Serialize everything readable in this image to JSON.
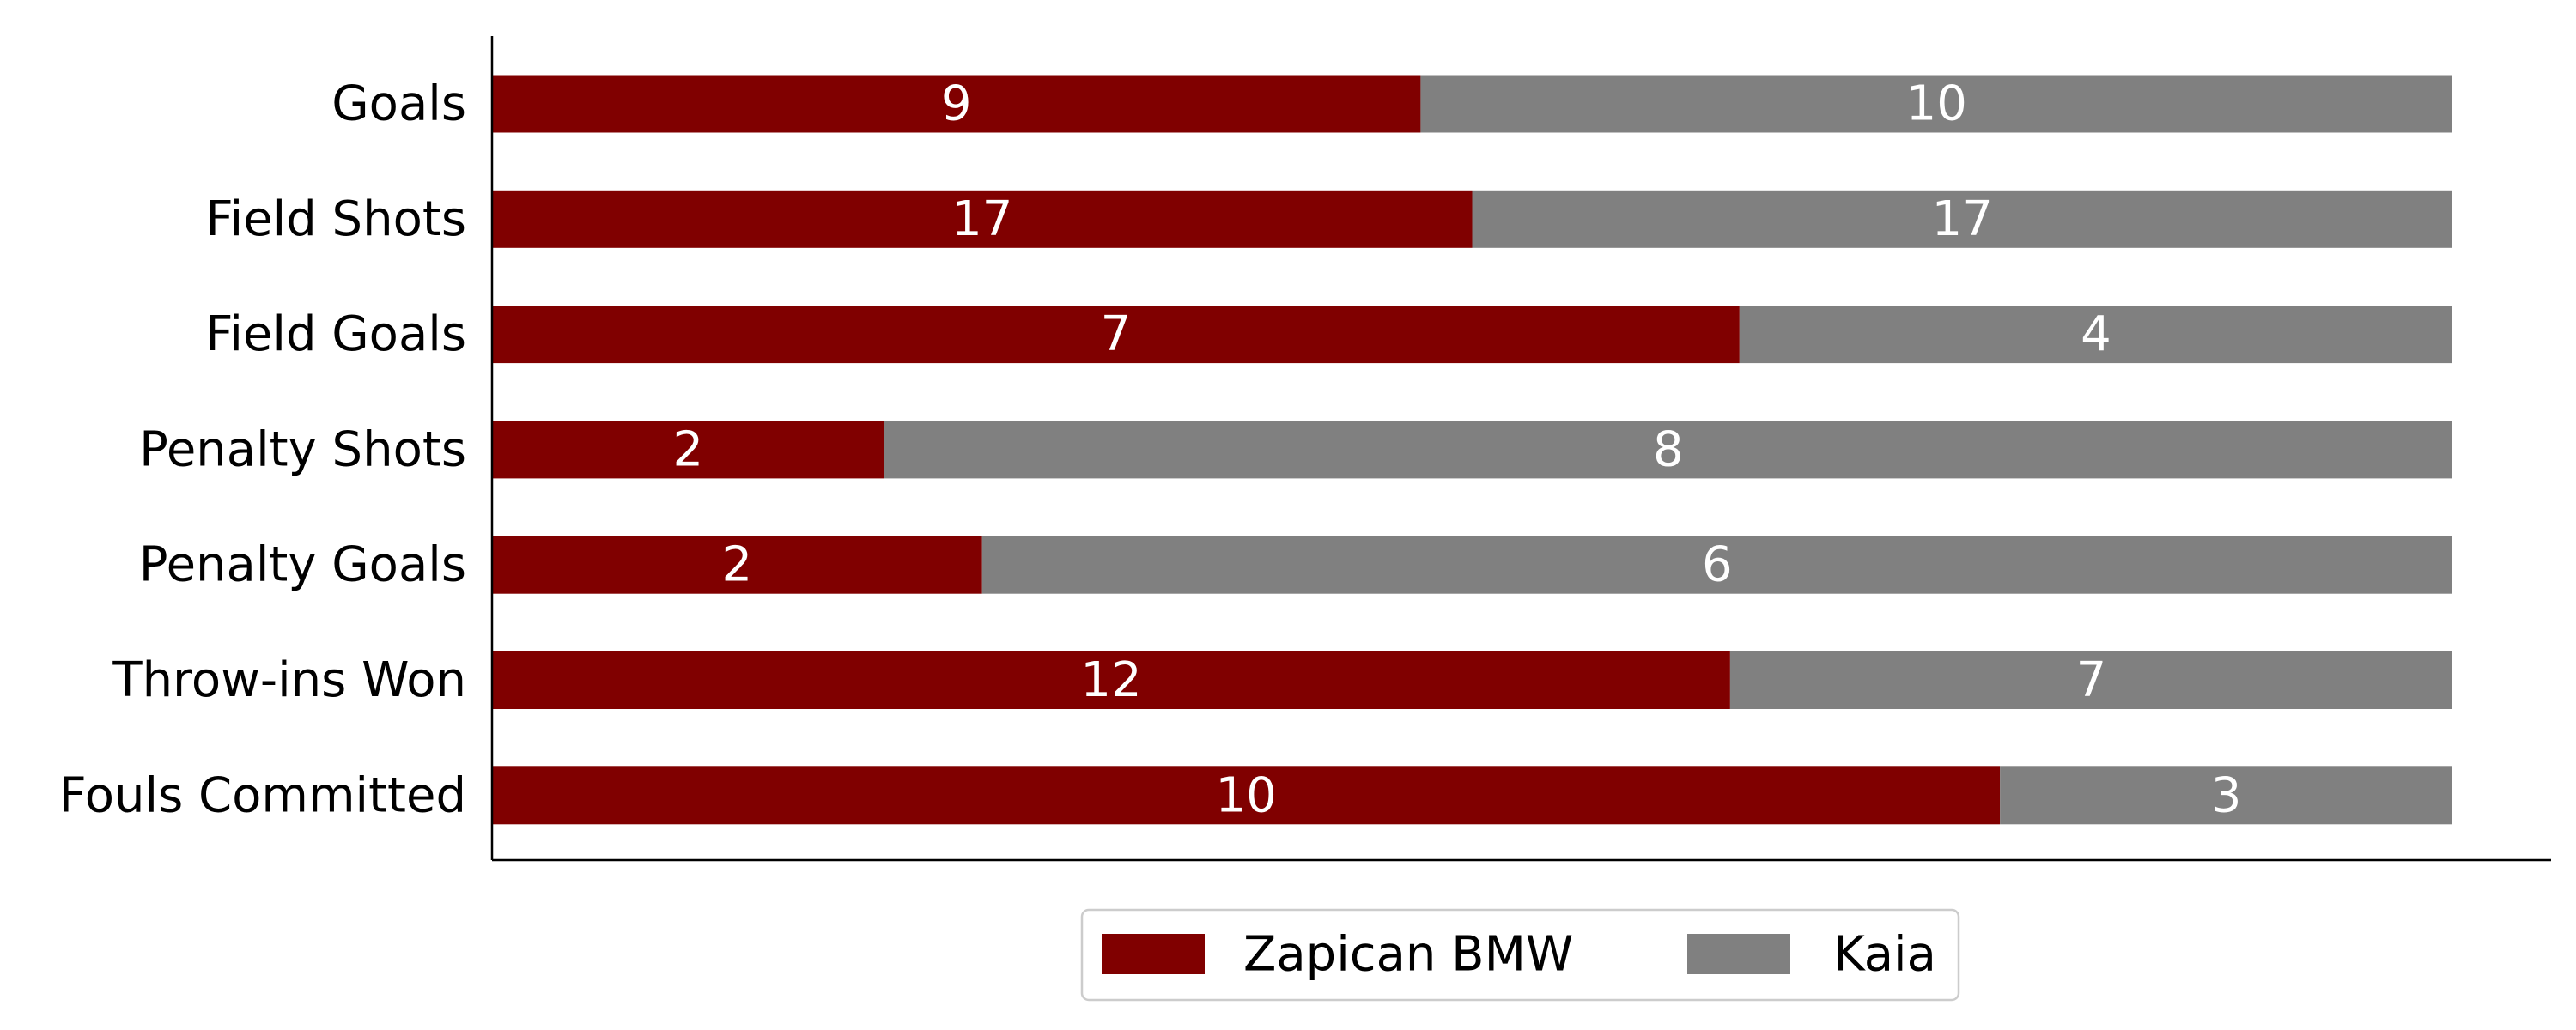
{
  "chart_data": {
    "type": "bar",
    "orientation": "horizontal",
    "stacked": "percent",
    "categories": [
      "Goals",
      "Field Shots",
      "Field Goals",
      "Penalty Shots",
      "Penalty Goals",
      "Throw-ins Won",
      "Fouls Committed"
    ],
    "series": [
      {
        "name": "Zapican BMW",
        "color": "#800000",
        "values": [
          9,
          17,
          7,
          2,
          2,
          12,
          10
        ]
      },
      {
        "name": "Kaia",
        "color": "#808080",
        "values": [
          10,
          17,
          4,
          8,
          6,
          7,
          3
        ]
      }
    ],
    "legend": "bottom"
  }
}
